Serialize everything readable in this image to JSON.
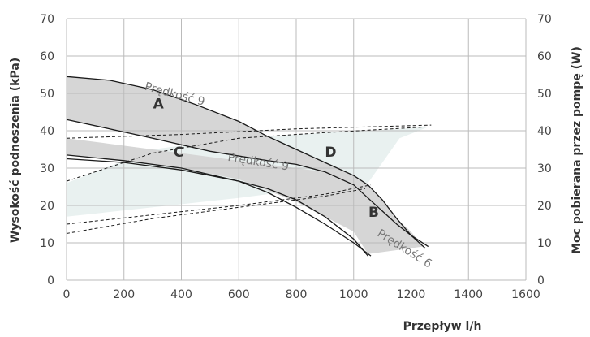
{
  "chart_data": {
    "type": "line",
    "title": "",
    "xlabel": "Przepływ l/h",
    "ylabel_left": "Wysokość podnoszenia (kPa)",
    "ylabel_right": "Moc pobierana przez pompę (W)",
    "xlim": [
      0,
      1600
    ],
    "ylim_left": [
      0,
      70
    ],
    "ylim_right": [
      0,
      70
    ],
    "x_ticks": [
      "0",
      "200",
      "400",
      "600",
      "800",
      "1000",
      "1200",
      "1400",
      "1600"
    ],
    "y_ticks_left": [
      "0",
      "10",
      "20",
      "30",
      "40",
      "50",
      "60",
      "70"
    ],
    "y_ticks_right": [
      "0",
      "10",
      "20",
      "30",
      "40",
      "50",
      "60",
      "70"
    ],
    "grid": true,
    "colors": {
      "region_fill": "#d6d6d6",
      "region_d_fill": "#e9f1f0",
      "line": "#1a1a1a",
      "grid": "#bbbbbb"
    },
    "regions": [
      {
        "name": "A",
        "label_at": [
          320,
          46
        ],
        "boundary": [
          [
            0,
            54.5
          ],
          [
            150,
            53.5
          ],
          [
            300,
            51
          ],
          [
            450,
            47
          ],
          [
            600,
            42.5
          ],
          [
            700,
            38.5
          ],
          [
            800,
            35
          ],
          [
            900,
            31.5
          ],
          [
            1000,
            28
          ],
          [
            1050,
            25.5
          ],
          [
            1100,
            21.5
          ],
          [
            1150,
            16.5
          ],
          [
            1200,
            12
          ],
          [
            1250,
            8.5
          ],
          [
            1250,
            8.5
          ],
          [
            1000,
            24
          ],
          [
            900,
            29
          ],
          [
            800,
            31
          ],
          [
            700,
            32
          ],
          [
            500,
            34.5
          ],
          [
            300,
            38
          ],
          [
            150,
            40.5
          ],
          [
            0,
            43
          ]
        ]
      },
      {
        "name": "B",
        "label_at": [
          1070,
          17
        ],
        "boundary": [
          [
            0,
            33.5
          ],
          [
            200,
            32
          ],
          [
            400,
            30
          ],
          [
            600,
            27
          ],
          [
            800,
            21
          ],
          [
            1000,
            13
          ],
          [
            1050,
            7
          ],
          [
            1240,
            9
          ],
          [
            1200,
            13
          ],
          [
            1100,
            20
          ],
          [
            1000,
            26
          ],
          [
            900,
            29
          ],
          [
            700,
            31
          ],
          [
            500,
            33
          ],
          [
            300,
            35
          ],
          [
            150,
            36.5
          ],
          [
            0,
            38
          ]
        ]
      },
      {
        "name": "C",
        "label_at": [
          390,
          33
        ],
        "boundary": []
      },
      {
        "name": "D",
        "label_at": [
          920,
          33
        ],
        "boundary": [
          [
            0,
            17
          ],
          [
            300,
            19.5
          ],
          [
            600,
            22
          ],
          [
            850,
            24.5
          ],
          [
            1050,
            26
          ],
          [
            1160,
            38
          ],
          [
            1260,
            41
          ],
          [
            1060,
            40
          ],
          [
            900,
            39.5
          ],
          [
            700,
            38.5
          ],
          [
            500,
            37
          ],
          [
            300,
            35
          ],
          [
            0,
            26
          ]
        ]
      }
    ],
    "series": [
      {
        "name": "Prędkość 9",
        "role": "pump_curve_max",
        "x": [
          0,
          150,
          300,
          450,
          600,
          700,
          800,
          900,
          1000,
          1050,
          1100,
          1150,
          1200,
          1250
        ],
        "y": [
          54.5,
          53.5,
          51,
          47,
          42.5,
          38.5,
          35,
          31.5,
          28,
          25.5,
          21.5,
          16.5,
          12,
          8.5
        ]
      },
      {
        "name": "Prędkość 9",
        "role": "pump_curve_mid",
        "x": [
          0,
          150,
          300,
          500,
          700,
          800,
          900,
          1000,
          1050,
          1100,
          1150,
          1200,
          1260
        ],
        "y": [
          43,
          40.5,
          38,
          34.5,
          32,
          31,
          29,
          25.5,
          22,
          18.5,
          15,
          12,
          9
        ]
      },
      {
        "name": "Prędkość 6",
        "role": "pump_curve_min",
        "x": [
          0,
          200,
          400,
          600,
          700,
          800,
          900,
          1000,
          1060
        ],
        "y": [
          33.5,
          32,
          30,
          26.5,
          23.5,
          19.5,
          15,
          10,
          6.5
        ]
      },
      {
        "name": "",
        "role": "pump_curve_lower",
        "x": [
          0,
          200,
          400,
          600,
          700,
          800,
          900,
          1000,
          1050
        ],
        "y": [
          32.5,
          31.5,
          29.5,
          26.5,
          24.5,
          21.5,
          17,
          11,
          6.5
        ]
      },
      {
        "name": "",
        "role": "power_dashed",
        "dashed": true,
        "x": [
          0,
          400,
          800,
          1270
        ],
        "y": [
          38,
          39,
          40.5,
          41.5
        ]
      },
      {
        "name": "",
        "role": "power_dashed",
        "dashed": true,
        "x": [
          0,
          300,
          600,
          900,
          1250
        ],
        "y": [
          26.5,
          34,
          38,
          39.5,
          41
        ]
      },
      {
        "name": "",
        "role": "power_dashed",
        "dashed": true,
        "x": [
          0,
          300,
          600,
          900,
          1060
        ],
        "y": [
          15,
          17.5,
          20,
          23,
          25.5
        ]
      },
      {
        "name": "",
        "role": "power_dashed",
        "dashed": true,
        "x": [
          0,
          300,
          600,
          900,
          1040
        ],
        "y": [
          12.5,
          16.5,
          19.5,
          22.5,
          24.5
        ]
      }
    ],
    "annotations": [
      {
        "text": "Prędkość 9",
        "x": 270,
        "y": 51,
        "rotation": 15
      },
      {
        "text": "Prędkość 9",
        "x": 560,
        "y": 32,
        "rotation": 9
      },
      {
        "text": "Prędkość 6",
        "x": 1080,
        "y": 12,
        "rotation": 32
      }
    ]
  }
}
